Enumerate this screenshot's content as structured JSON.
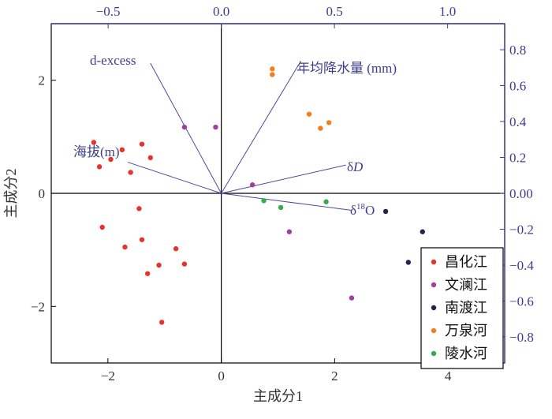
{
  "chart_data": {
    "type": "scatter",
    "subtype": "pca-biplot",
    "xlabel": "主成分1",
    "ylabel": "主成分2",
    "xlim": [
      -3.0,
      5.0
    ],
    "ylim": [
      -3.0,
      3.0
    ],
    "x_ticks": [
      -2,
      0,
      2,
      4
    ],
    "x_tick_labels": [
      "−2",
      "0",
      "2",
      "4"
    ],
    "y_ticks": [
      -2,
      0,
      2
    ],
    "y_tick_labels": [
      "−2",
      "0",
      "2"
    ],
    "top_axis": {
      "ticks": [
        -0.5,
        0.0,
        0.5,
        1.0
      ],
      "tick_labels": [
        "−0.5",
        "0.0",
        "0.5",
        "1.0"
      ],
      "color": "#3d3d8f"
    },
    "right_axis": {
      "ticks": [
        0.8,
        0.6,
        0.4,
        0.2,
        0.0,
        -0.2,
        -0.4,
        -0.6,
        -0.8
      ],
      "tick_labels": [
        "0.8",
        "0.6",
        "0.4",
        "0.2",
        "0.00",
        "−0.2",
        "−0.4",
        "−0.6",
        "−0.8"
      ],
      "color": "#3d3d8f"
    },
    "zero_lines": true,
    "legend_position": "bottom-right",
    "loadings": [
      {
        "name": "d-excess",
        "x": -1.25,
        "y": 2.3
      },
      {
        "name": "年均降水量 (mm)",
        "x": 1.35,
        "y": 2.25
      },
      {
        "name": "海拔(m)",
        "x": -1.65,
        "y": 0.55
      },
      {
        "name_prefix": "δ",
        "name_italic": "D",
        "x": 2.2,
        "y": 0.5
      },
      {
        "name_prefix": "δ",
        "name_sup": "18",
        "name_suffix": "O",
        "x": 2.3,
        "y": -0.3
      }
    ],
    "series": [
      {
        "name": "昌化江",
        "color": "#e8332a",
        "points": [
          [
            -2.25,
            0.9
          ],
          [
            -2.15,
            0.47
          ],
          [
            -1.95,
            0.6
          ],
          [
            -1.75,
            0.77
          ],
          [
            -1.6,
            0.37
          ],
          [
            -1.4,
            0.87
          ],
          [
            -1.25,
            0.63
          ],
          [
            -1.45,
            -0.27
          ],
          [
            -2.1,
            -0.6
          ],
          [
            -1.7,
            -0.95
          ],
          [
            -1.4,
            -0.82
          ],
          [
            -1.3,
            -1.42
          ],
          [
            -1.1,
            -1.27
          ],
          [
            -0.8,
            -0.98
          ],
          [
            -0.65,
            -1.25
          ],
          [
            -1.05,
            -2.28
          ]
        ]
      },
      {
        "name": "文澜江",
        "color": "#a23e9f",
        "points": [
          [
            -0.65,
            1.17
          ],
          [
            -0.1,
            1.17
          ],
          [
            0.55,
            0.15
          ],
          [
            1.2,
            -0.68
          ],
          [
            2.3,
            -1.85
          ]
        ]
      },
      {
        "name": "南渡江",
        "color": "#2a1f4f",
        "points": [
          [
            2.9,
            -0.32
          ],
          [
            3.55,
            -0.68
          ],
          [
            3.3,
            -1.22
          ]
        ]
      },
      {
        "name": "万泉河",
        "color": "#f07f1e",
        "points": [
          [
            0.9,
            2.2
          ],
          [
            0.9,
            2.1
          ],
          [
            1.55,
            1.4
          ],
          [
            1.75,
            1.15
          ],
          [
            1.9,
            1.25
          ]
        ]
      },
      {
        "name": "陵水河",
        "color": "#2fae4c",
        "points": [
          [
            0.75,
            -0.13
          ],
          [
            1.05,
            -0.25
          ],
          [
            1.85,
            -0.15
          ]
        ]
      }
    ]
  }
}
